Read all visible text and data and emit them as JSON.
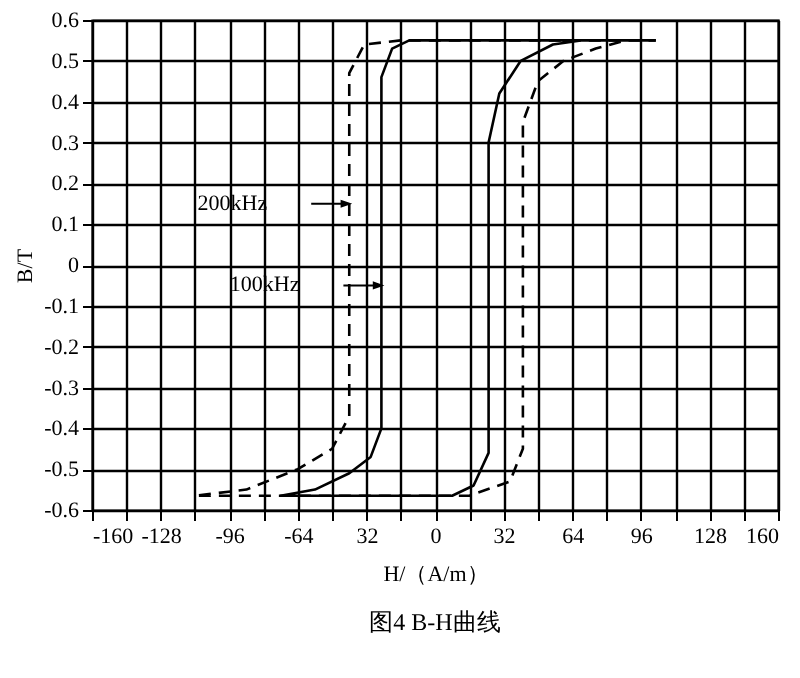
{
  "chart_data": {
    "type": "line",
    "xlabel": "H/（A/m）",
    "ylabel": "B/T",
    "annotations": [
      "200kHz",
      "100kHz",
      "图4 B-H曲线"
    ],
    "series": [
      {
        "color": "#000000",
        "line_style": "dashed",
        "x": [
          96,
          -16,
          -33,
          -40,
          -40,
          -48,
          -64,
          -88,
          -112,
          16,
          35,
          41,
          41,
          48,
          60,
          75,
          89,
          103
        ],
        "values": [
          0.55,
          0.55,
          0.54,
          0.47,
          -0.37,
          -0.45,
          -0.5,
          -0.55,
          -0.565,
          -0.565,
          -0.53,
          -0.45,
          0.35,
          0.45,
          0.5,
          0.53,
          0.55,
          0.55
        ]
      },
      {
        "color": "#000000",
        "line_style": "solid",
        "x": [
          100,
          -12,
          -20,
          -25,
          -25,
          -30,
          -40,
          -56,
          -72,
          8,
          18,
          25,
          25,
          30,
          40,
          55,
          68,
          103
        ],
        "values": [
          0.55,
          0.55,
          0.53,
          0.46,
          -0.4,
          -0.47,
          -0.51,
          -0.55,
          -0.565,
          -0.565,
          -0.54,
          -0.46,
          0.3,
          0.42,
          0.5,
          0.54,
          0.55,
          0.55
        ]
      }
    ],
    "xlim": [
      -160,
      160
    ],
    "xticks": [
      -160,
      {
        "value": -144,
        "label": null
      },
      -128,
      {
        "value": -112,
        "label": null
      },
      -96,
      {
        "value": -80,
        "label": null
      },
      -64,
      {
        "value": -48,
        "label": null
      },
      {
        "value": -32,
        "label": "32"
      },
      {
        "value": -16,
        "label": null
      },
      0,
      {
        "value": 16,
        "label": null
      },
      32,
      {
        "value": 48,
        "label": null
      },
      64,
      {
        "value": 80,
        "label": null
      },
      96,
      {
        "value": 112,
        "label": null
      },
      128,
      {
        "value": 144,
        "label": null
      },
      160
    ],
    "ylim": [
      -0.6,
      0.6
    ],
    "yticks": [
      -0.6,
      -0.5,
      -0.4,
      -0.3,
      -0.2,
      -0.1,
      0,
      0.1,
      0.2,
      0.3,
      0.4,
      0.5,
      0.6
    ],
    "grid": true,
    "marker": "none"
  }
}
